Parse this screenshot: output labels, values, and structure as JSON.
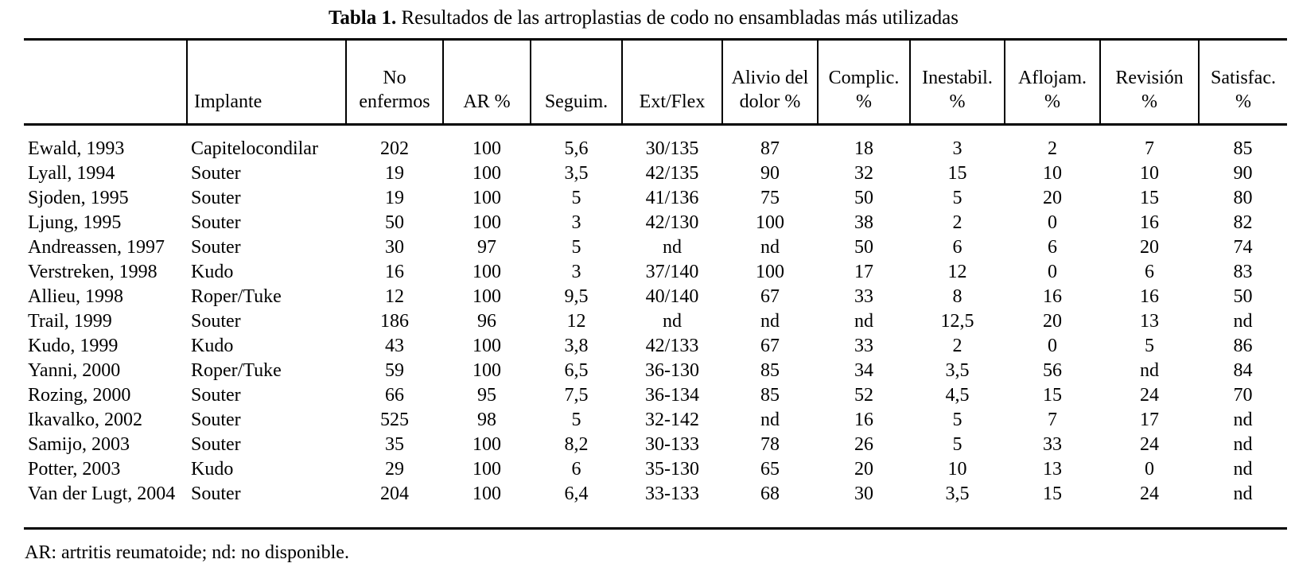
{
  "title": {
    "prefix": "Tabla 1.",
    "text": " Resultados de las artroplastias de codo no ensambladas más utilizadas"
  },
  "table": {
    "columns": [
      "",
      "Implante",
      "No\nenfermos",
      "AR %",
      "Seguim.",
      "Ext/Flex",
      "Alivio del\ndolor %",
      "Complic.\n%",
      "Inestabil.\n%",
      "Aflojam.\n%",
      "Revisión\n%",
      "Satisfac.\n%"
    ],
    "rows": [
      [
        "Ewald, 1993",
        "Capitelocondilar",
        "202",
        "100",
        "5,6",
        "30/135",
        "87",
        "18",
        "3",
        "2",
        "7",
        "85"
      ],
      [
        "Lyall, 1994",
        "Souter",
        "19",
        "100",
        "3,5",
        "42/135",
        "90",
        "32",
        "15",
        "10",
        "10",
        "90"
      ],
      [
        "Sjoden, 1995",
        "Souter",
        "19",
        "100",
        "5",
        "41/136",
        "75",
        "50",
        "5",
        "20",
        "15",
        "80"
      ],
      [
        "Ljung, 1995",
        "Souter",
        "50",
        "100",
        "3",
        "42/130",
        "100",
        "38",
        "2",
        "0",
        "16",
        "82"
      ],
      [
        "Andreassen, 1997",
        "Souter",
        "30",
        "97",
        "5",
        "nd",
        "nd",
        "50",
        "6",
        "6",
        "20",
        "74"
      ],
      [
        "Verstreken, 1998",
        "Kudo",
        "16",
        "100",
        "3",
        "37/140",
        "100",
        "17",
        "12",
        "0",
        "6",
        "83"
      ],
      [
        "Allieu, 1998",
        "Roper/Tuke",
        "12",
        "100",
        "9,5",
        "40/140",
        "67",
        "33",
        "8",
        "16",
        "16",
        "50"
      ],
      [
        "Trail, 1999",
        "Souter",
        "186",
        "96",
        "12",
        "nd",
        "nd",
        "nd",
        "12,5",
        "20",
        "13",
        "nd"
      ],
      [
        "Kudo, 1999",
        "Kudo",
        "43",
        "100",
        "3,8",
        "42/133",
        "67",
        "33",
        "2",
        "0",
        "5",
        "86"
      ],
      [
        "Yanni, 2000",
        "Roper/Tuke",
        "59",
        "100",
        "6,5",
        "36-130",
        "85",
        "34",
        "3,5",
        "56",
        "nd",
        "84"
      ],
      [
        "Rozing, 2000",
        "Souter",
        "66",
        "95",
        "7,5",
        "36-134",
        "85",
        "52",
        "4,5",
        "15",
        "24",
        "70"
      ],
      [
        "Ikavalko, 2002",
        "Souter",
        "525",
        "98",
        "5",
        "32-142",
        "nd",
        "16",
        "5",
        "7",
        "17",
        "nd"
      ],
      [
        "Samijo, 2003",
        "Souter",
        "35",
        "100",
        "8,2",
        "30-133",
        "78",
        "26",
        "5",
        "33",
        "24",
        "nd"
      ],
      [
        "Potter, 2003",
        "Kudo",
        "29",
        "100",
        "6",
        "35-130",
        "65",
        "20",
        "10",
        "13",
        "0",
        "nd"
      ],
      [
        "Van der Lugt, 2004",
        "Souter",
        "204",
        "100",
        "6,4",
        "33-133",
        "68",
        "30",
        "3,5",
        "15",
        "24",
        "nd"
      ]
    ]
  },
  "footnote": "AR: artritis reumatoide; nd: no disponible."
}
